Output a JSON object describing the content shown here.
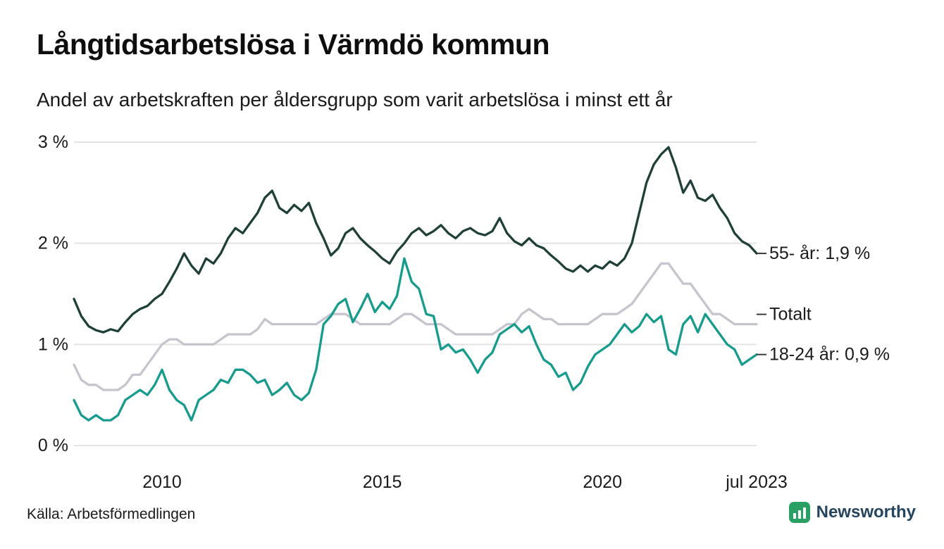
{
  "title": "Långtidsarbetslösa i Värmdö kommun",
  "subtitle": "Andel av arbetskraften per åldersgrupp som varit arbetslösa i minst ett år",
  "source": "Källa: Arbetsförmedlingen",
  "logo": {
    "text": "Newsworthy",
    "icon": "bar-chart-icon",
    "icon_color": "#2aa164",
    "text_color": "#25455f"
  },
  "chart_data": {
    "type": "line",
    "title": "Långtidsarbetslösa i Värmdö kommun",
    "subtitle": "Andel av arbetskraften per åldersgrupp som varit arbetslösa i minst ett år",
    "xlim": [
      2008.0,
      2023.5
    ],
    "ylim": [
      0,
      3.05
    ],
    "grid": "horizontal",
    "grid_color": "#e3e3e3",
    "legend_position": "right-end-labels",
    "x_start": 2008.0,
    "x_step": 0.1666667,
    "x_ticks": [
      {
        "value": 2010,
        "label": "2010"
      },
      {
        "value": 2015,
        "label": "2015"
      },
      {
        "value": 2020,
        "label": "2020"
      },
      {
        "value": 2023.5,
        "label": "jul 2023"
      }
    ],
    "y_ticks": [
      {
        "value": 0,
        "label": "0 %"
      },
      {
        "value": 1,
        "label": "1 %"
      },
      {
        "value": 2,
        "label": "2 %"
      },
      {
        "value": 3,
        "label": "3 %"
      }
    ],
    "series": [
      {
        "name": "55- år",
        "end_label": "55- år: 1,9 %",
        "last_value": 1.9,
        "color": "#1f4038",
        "label_dy": 0,
        "values": [
          1.45,
          1.28,
          1.18,
          1.14,
          1.12,
          1.15,
          1.13,
          1.22,
          1.3,
          1.35,
          1.38,
          1.45,
          1.5,
          1.62,
          1.75,
          1.9,
          1.78,
          1.7,
          1.85,
          1.8,
          1.9,
          2.05,
          2.15,
          2.1,
          2.2,
          2.3,
          2.45,
          2.52,
          2.35,
          2.3,
          2.38,
          2.32,
          2.4,
          2.2,
          2.05,
          1.88,
          1.95,
          2.1,
          2.15,
          2.05,
          1.98,
          1.92,
          1.85,
          1.8,
          1.92,
          2.0,
          2.1,
          2.15,
          2.08,
          2.12,
          2.18,
          2.1,
          2.05,
          2.12,
          2.15,
          2.1,
          2.08,
          2.12,
          2.25,
          2.1,
          2.02,
          1.98,
          2.05,
          1.98,
          1.95,
          1.88,
          1.82,
          1.75,
          1.72,
          1.78,
          1.72,
          1.78,
          1.75,
          1.82,
          1.78,
          1.85,
          2.0,
          2.3,
          2.6,
          2.78,
          2.88,
          2.95,
          2.75,
          2.5,
          2.62,
          2.45,
          2.42,
          2.48,
          2.35,
          2.25,
          2.1,
          2.02,
          1.98,
          1.9
        ]
      },
      {
        "name": "Totalt",
        "end_label": "Totalt",
        "last_value": 1.2,
        "color": "#c6c5ce",
        "label_dy": -14,
        "values": [
          0.8,
          0.65,
          0.6,
          0.6,
          0.55,
          0.55,
          0.55,
          0.6,
          0.7,
          0.7,
          0.8,
          0.9,
          1.0,
          1.05,
          1.05,
          1.0,
          1.0,
          1.0,
          1.0,
          1.0,
          1.05,
          1.1,
          1.1,
          1.1,
          1.1,
          1.15,
          1.25,
          1.2,
          1.2,
          1.2,
          1.2,
          1.2,
          1.2,
          1.2,
          1.25,
          1.3,
          1.3,
          1.3,
          1.25,
          1.2,
          1.2,
          1.2,
          1.2,
          1.2,
          1.25,
          1.3,
          1.3,
          1.25,
          1.2,
          1.2,
          1.2,
          1.15,
          1.1,
          1.1,
          1.1,
          1.1,
          1.1,
          1.1,
          1.15,
          1.2,
          1.2,
          1.3,
          1.35,
          1.3,
          1.25,
          1.25,
          1.2,
          1.2,
          1.2,
          1.2,
          1.2,
          1.25,
          1.3,
          1.3,
          1.3,
          1.35,
          1.4,
          1.5,
          1.6,
          1.7,
          1.8,
          1.8,
          1.7,
          1.6,
          1.6,
          1.5,
          1.4,
          1.3,
          1.3,
          1.25,
          1.2,
          1.2,
          1.2,
          1.2
        ]
      },
      {
        "name": "18-24 år",
        "end_label": "18-24 år: 0,9 %",
        "last_value": 0.9,
        "color": "#169b8d",
        "label_dy": 0,
        "values": [
          0.45,
          0.3,
          0.25,
          0.3,
          0.25,
          0.25,
          0.3,
          0.45,
          0.5,
          0.55,
          0.5,
          0.6,
          0.75,
          0.55,
          0.45,
          0.4,
          0.25,
          0.45,
          0.5,
          0.55,
          0.65,
          0.62,
          0.75,
          0.75,
          0.7,
          0.62,
          0.65,
          0.5,
          0.55,
          0.62,
          0.5,
          0.45,
          0.52,
          0.75,
          1.2,
          1.28,
          1.4,
          1.45,
          1.22,
          1.35,
          1.5,
          1.32,
          1.42,
          1.35,
          1.48,
          1.85,
          1.62,
          1.55,
          1.3,
          1.28,
          0.95,
          1.0,
          0.92,
          0.95,
          0.85,
          0.72,
          0.85,
          0.92,
          1.1,
          1.15,
          1.2,
          1.12,
          1.18,
          1.0,
          0.85,
          0.8,
          0.68,
          0.72,
          0.55,
          0.62,
          0.78,
          0.9,
          0.95,
          1.0,
          1.1,
          1.2,
          1.12,
          1.18,
          1.3,
          1.22,
          1.28,
          0.95,
          0.9,
          1.2,
          1.28,
          1.12,
          1.3,
          1.2,
          1.1,
          1.0,
          0.95,
          0.8,
          0.85,
          0.9
        ]
      }
    ]
  }
}
